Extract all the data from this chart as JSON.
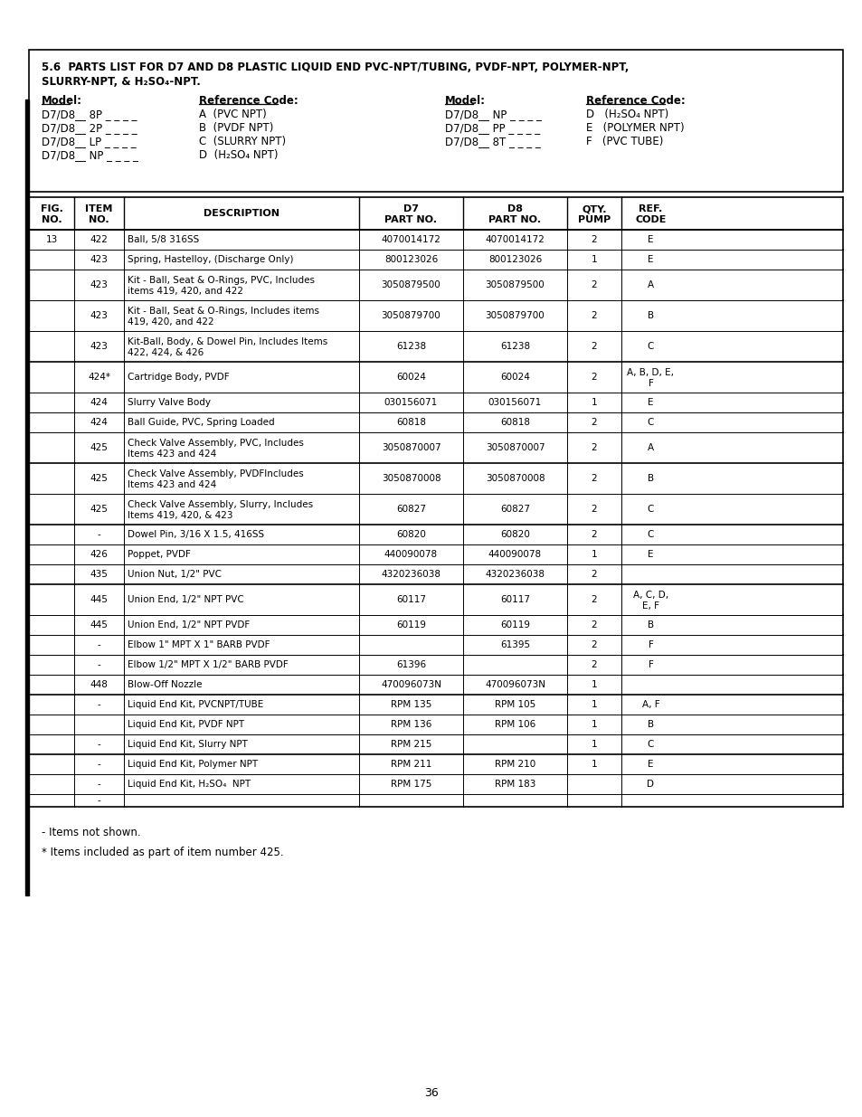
{
  "page_bg": "#ffffff",
  "title_line1": "5.6  PARTS LIST FOR D7 AND D8 PLASTIC LIQUID END PVC-NPT/TUBING, PVDF-NPT, POLYMER-NPT,",
  "title_line2": "SLURRY-NPT, & H₂SO₄-NPT.",
  "model_refs_left": [
    [
      "D7/D8__ 8P _ _ _ _",
      "A  (PVC NPT)"
    ],
    [
      "D7/D8__ 2P _ _ _ _",
      "B  (PVDF NPT)"
    ],
    [
      "D7/D8__ LP _ _ _ _",
      "C  (SLURRY NPT)"
    ],
    [
      "D7/D8__ NP _ _ _ _",
      "D  (H₂SO₄ NPT)"
    ]
  ],
  "model_refs_right": [
    [
      "D7/D8__ NP _ _ _ _",
      "D   (H₂SO₄ NPT)"
    ],
    [
      "D7/D8__ PP _ _ _ _",
      "E   (POLYMER NPT)"
    ],
    [
      "D7/D8__ 8T _ _ _ _",
      "F   (PVC TUBE)"
    ]
  ],
  "table_headers": [
    "FIG.\nNO.",
    "ITEM\nNO.",
    "DESCRIPTION",
    "D7\nPART NO.",
    "D8\nPART NO.",
    "QTY.\nPUMP",
    "REF.\nCODE"
  ],
  "table_rows": [
    [
      "13",
      "422",
      "Ball, 5/8 316SS",
      "4070014172",
      "4070014172",
      "2",
      "E"
    ],
    [
      "",
      "423",
      "Spring, Hastelloy, (Discharge Only)",
      "800123026",
      "800123026",
      "1",
      "E"
    ],
    [
      "",
      "423",
      "Kit - Ball, Seat & O-Rings, PVC, Includes\nitems 419, 420, and 422",
      "3050879500",
      "3050879500",
      "2",
      "A"
    ],
    [
      "",
      "423",
      "Kit - Ball, Seat & O-Rings, Includes items\n419, 420, and 422",
      "3050879700",
      "3050879700",
      "2",
      "B"
    ],
    [
      "",
      "423",
      "Kit-Ball, Body, & Dowel Pin, Includes Items\n422, 424, & 426",
      "61238",
      "61238",
      "2",
      "C"
    ],
    [
      "",
      "424*",
      "Cartridge Body, PVDF",
      "60024",
      "60024",
      "2",
      "A, B, D, E,\nF"
    ],
    [
      "",
      "424",
      "Slurry Valve Body",
      "030156071",
      "030156071",
      "1",
      "E"
    ],
    [
      "",
      "424",
      "Ball Guide, PVC, Spring Loaded",
      "60818",
      "60818",
      "2",
      "C"
    ],
    [
      "",
      "425",
      "Check Valve Assembly, PVC, Includes\nItems 423 and 424",
      "3050870007",
      "3050870007",
      "2",
      "A"
    ],
    [
      "",
      "425",
      "Check Valve Assembly, PVDFIncludes\nItems 423 and 424",
      "3050870008",
      "3050870008",
      "2",
      "B"
    ],
    [
      "",
      "425",
      "Check Valve Assembly, Slurry, Includes\nItems 419, 420, & 423",
      "60827",
      "60827",
      "2",
      "C"
    ],
    [
      "",
      "-",
      "Dowel Pin, 3/16 X 1.5, 416SS",
      "60820",
      "60820",
      "2",
      "C"
    ],
    [
      "",
      "426",
      "Poppet, PVDF",
      "440090078",
      "440090078",
      "1",
      "E"
    ],
    [
      "",
      "435",
      "Union Nut, 1/2\" PVC",
      "4320236038",
      "4320236038",
      "2",
      ""
    ],
    [
      "",
      "445",
      "Union End, 1/2\" NPT PVC",
      "60117",
      "60117",
      "2",
      "A, C, D,\nE, F"
    ],
    [
      "",
      "445",
      "Union End, 1/2\" NPT PVDF",
      "60119",
      "60119",
      "2",
      "B"
    ],
    [
      "",
      "-",
      "Elbow 1\" MPT X 1\" BARB PVDF",
      "",
      "61395",
      "2",
      "F"
    ],
    [
      "",
      "-",
      "Elbow 1/2\" MPT X 1/2\" BARB PVDF",
      "61396",
      "",
      "2",
      "F"
    ],
    [
      "",
      "448",
      "Blow-Off Nozzle",
      "470096073N",
      "470096073N",
      "1",
      ""
    ],
    [
      "",
      "-",
      "Liquid End Kit, PVCNPT/TUBE",
      "RPM 135",
      "RPM 105",
      "1",
      "A, F"
    ],
    [
      "",
      "",
      "Liquid End Kit, PVDF NPT",
      "RPM 136",
      "RPM 106",
      "1",
      "B"
    ],
    [
      "",
      "-",
      "Liquid End Kit, Slurry NPT",
      "RPM 215",
      "",
      "1",
      "C"
    ],
    [
      "",
      "-",
      "Liquid End Kit, Polymer NPT",
      "RPM 211",
      "RPM 210",
      "1",
      "E"
    ],
    [
      "",
      "-",
      "Liquid End Kit, H₂SO₄  NPT",
      "RPM 175",
      "RPM 183",
      "",
      "D"
    ],
    [
      "",
      "-",
      "",
      "",
      "",
      "",
      ""
    ]
  ],
  "thick_borders_before": [
    0,
    5,
    9,
    11,
    14,
    19,
    22
  ],
  "footnote1": "- Items not shown.",
  "footnote2": "* Items included as part of item number 425.",
  "page_number": "36"
}
